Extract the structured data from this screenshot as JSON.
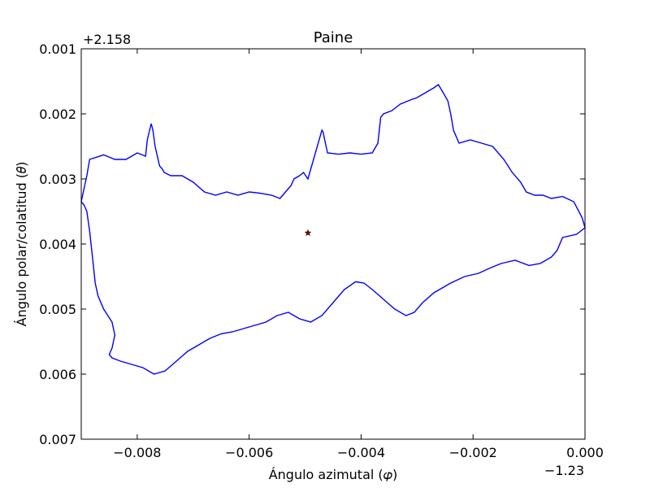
{
  "chart_data": {
    "type": "line",
    "title": "Paine",
    "xlabel": "Ángulo azimutal (𝜑)",
    "ylabel": "Ángulo polar/colatitud (𝜃)",
    "x_offset_label": "−1.23",
    "y_offset_label": "+2.158",
    "xlim": [
      -0.009,
      0.0
    ],
    "ylim_inverted": [
      0.001,
      0.007
    ],
    "x_ticks": [
      -0.008,
      -0.006,
      -0.004,
      -0.002,
      0.0
    ],
    "x_tick_labels": [
      "−0.008",
      "−0.006",
      "−0.004",
      "−0.002",
      "0.000"
    ],
    "y_ticks": [
      0.001,
      0.002,
      0.003,
      0.004,
      0.005,
      0.006,
      0.007
    ],
    "y_tick_labels": [
      "0.001",
      "0.002",
      "0.003",
      "0.004",
      "0.005",
      "0.006",
      "0.007"
    ],
    "grid": false,
    "colors": {
      "outline": "#0000ff",
      "marker": "#8b0000"
    },
    "series": [
      {
        "kind": "outline",
        "x": [
          -0.009,
          -0.00895,
          -0.0089,
          -0.00885,
          -0.0086,
          -0.0084,
          -0.0082,
          -0.008,
          -0.00785,
          -0.00782,
          -0.00775,
          -0.00772,
          -0.00768,
          -0.0076,
          -0.00755,
          -0.00752,
          -0.0074,
          -0.0072,
          -0.007,
          -0.0068,
          -0.0066,
          -0.0064,
          -0.0062,
          -0.006,
          -0.0058,
          -0.0056,
          -0.00545,
          -0.00535,
          -0.00525,
          -0.0052,
          -0.0051,
          -0.00503,
          -0.00495,
          -0.0047,
          -0.00468,
          -0.0046,
          -0.0044,
          -0.0042,
          -0.004,
          -0.0038,
          -0.0037,
          -0.00365,
          -0.0036,
          -0.00345,
          -0.0033,
          -0.0031,
          -0.003,
          -0.0029,
          -0.0028,
          -0.0027,
          -0.00262,
          -0.00255,
          -0.00245,
          -0.0024,
          -0.00235,
          -0.00225,
          -0.00205,
          -0.00185,
          -0.00165,
          -0.00145,
          -0.0013,
          -0.00115,
          -0.00105,
          -0.0009,
          -0.00075,
          -0.0006,
          -0.0004,
          -0.0002,
          -5e-05,
          0.0,
          -0.00015,
          -0.0004,
          -0.0005,
          -0.0006,
          -0.0007,
          -0.0008,
          -0.001,
          -0.00125,
          -0.0015,
          -0.0017,
          -0.0019,
          -0.00215,
          -0.0024,
          -0.0027,
          -0.0029,
          -0.00305,
          -0.0032,
          -0.0034,
          -0.0036,
          -0.0038,
          -0.00395,
          -0.0041,
          -0.0043,
          -0.0045,
          -0.0047,
          -0.0049,
          -0.0051,
          -0.0053,
          -0.0055,
          -0.0057,
          -0.0059,
          -0.0061,
          -0.0063,
          -0.0065,
          -0.0067,
          -0.0069,
          -0.0071,
          -0.0073,
          -0.0075,
          -0.0077,
          -0.0079,
          -0.0081,
          -0.0083,
          -0.00845,
          -0.0085,
          -0.00845,
          -0.0084,
          -0.00845,
          -0.0086,
          -0.0087,
          -0.00875,
          -0.0088,
          -0.00885,
          -0.0089,
          -0.00895,
          -0.009
        ],
        "y": [
          0.00335,
          0.00315,
          0.00295,
          0.0027,
          0.00263,
          0.0027,
          0.0027,
          0.0026,
          0.00265,
          0.0024,
          0.00215,
          0.00225,
          0.0025,
          0.0028,
          0.00285,
          0.0029,
          0.00295,
          0.00295,
          0.00305,
          0.0032,
          0.00325,
          0.0032,
          0.00325,
          0.0032,
          0.00322,
          0.00325,
          0.0033,
          0.0032,
          0.0031,
          0.003,
          0.00295,
          0.0029,
          0.003,
          0.00225,
          0.00228,
          0.0026,
          0.00262,
          0.0026,
          0.00262,
          0.0026,
          0.00245,
          0.00205,
          0.002,
          0.00195,
          0.00185,
          0.00178,
          0.00175,
          0.0017,
          0.00165,
          0.0016,
          0.00155,
          0.00165,
          0.0018,
          0.002,
          0.00225,
          0.00245,
          0.0024,
          0.00245,
          0.0025,
          0.0027,
          0.0029,
          0.00305,
          0.0032,
          0.00325,
          0.00325,
          0.0033,
          0.00327,
          0.00335,
          0.0036,
          0.00375,
          0.00385,
          0.0039,
          0.0041,
          0.0042,
          0.00425,
          0.0043,
          0.00433,
          0.00425,
          0.0043,
          0.00437,
          0.00445,
          0.0045,
          0.0046,
          0.00475,
          0.0049,
          0.00505,
          0.0051,
          0.005,
          0.00485,
          0.0047,
          0.0046,
          0.00458,
          0.0047,
          0.0049,
          0.0051,
          0.0052,
          0.00515,
          0.00505,
          0.0051,
          0.0052,
          0.00525,
          0.0053,
          0.00535,
          0.00538,
          0.00545,
          0.00555,
          0.00565,
          0.0058,
          0.00595,
          0.006,
          0.0059,
          0.00585,
          0.0058,
          0.00575,
          0.0057,
          0.0056,
          0.0054,
          0.0052,
          0.005,
          0.0048,
          0.0046,
          0.0042,
          0.0038,
          0.0035,
          0.0034,
          0.00335
        ]
      }
    ],
    "marker": {
      "x": -0.00495,
      "y": 0.00383,
      "shape": "star"
    }
  }
}
